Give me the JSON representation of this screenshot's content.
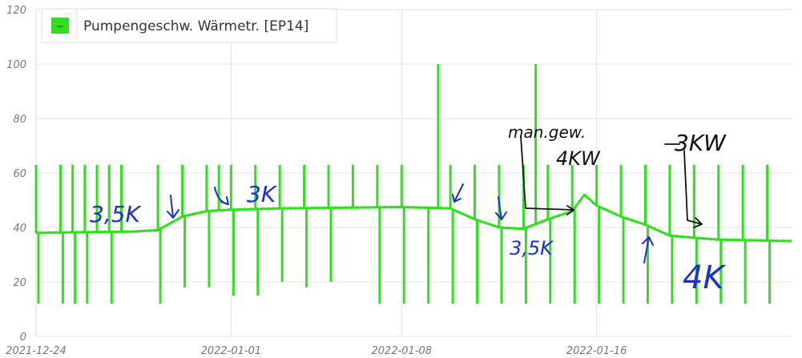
{
  "chart_data": {
    "type": "line",
    "title": "",
    "xlabel": "",
    "ylabel": "",
    "x_ticks": [
      "2021-12-24",
      "2022-01-01",
      "2022-01-08",
      "2022-01-16"
    ],
    "y_ticks": [
      0,
      20,
      40,
      60,
      80,
      100,
      120
    ],
    "xlim": [
      "2021-12-24",
      "2022-01-24"
    ],
    "ylim": [
      0,
      120
    ],
    "grid": true,
    "legend_position": "top-left",
    "series": [
      {
        "name": "Pumpengeschw. Wärmetr. [EP14]",
        "color": "#33dd22",
        "baseline": [
          [
            "2021-12-24",
            38
          ],
          [
            "2021-12-28",
            38.5
          ],
          [
            "2021-12-29",
            39
          ],
          [
            "2021-12-30",
            44
          ],
          [
            "2021-12-31",
            46
          ],
          [
            "2022-01-01",
            46.5
          ],
          [
            "2022-01-03",
            47
          ],
          [
            "2022-01-08",
            47.5
          ],
          [
            "2022-01-10",
            47
          ],
          [
            "2022-01-11",
            43
          ],
          [
            "2022-01-12",
            40
          ],
          [
            "2022-01-13",
            39.5
          ],
          [
            "2022-01-14",
            43
          ],
          [
            "2022-01-15",
            46
          ],
          [
            "2022-01-15T12",
            52
          ],
          [
            "2022-01-16",
            48
          ],
          [
            "2022-01-17",
            44
          ],
          [
            "2022-01-18",
            41
          ],
          [
            "2022-01-19",
            37
          ],
          [
            "2022-01-21",
            35.5
          ],
          [
            "2022-01-24",
            35
          ]
        ],
        "spikes_high": [
          [
            "2021-12-24",
            63
          ],
          [
            "2021-12-25",
            63
          ],
          [
            "2021-12-25T12",
            63
          ],
          [
            "2021-12-26",
            63
          ],
          [
            "2021-12-26T12",
            63
          ],
          [
            "2021-12-27",
            63
          ],
          [
            "2021-12-27T12",
            63
          ],
          [
            "2021-12-29",
            63
          ],
          [
            "2021-12-30",
            63
          ],
          [
            "2021-12-31",
            63
          ],
          [
            "2021-12-31T12",
            63
          ],
          [
            "2022-01-01",
            63
          ],
          [
            "2022-01-02",
            63
          ],
          [
            "2022-01-03",
            63
          ],
          [
            "2022-01-04",
            63
          ],
          [
            "2022-01-05",
            63
          ],
          [
            "2022-01-06",
            63
          ],
          [
            "2022-01-07",
            63
          ],
          [
            "2022-01-08",
            63
          ],
          [
            "2022-01-09T12",
            100
          ],
          [
            "2022-01-10",
            63
          ],
          [
            "2022-01-11",
            63
          ],
          [
            "2022-01-12",
            63
          ],
          [
            "2022-01-13",
            63
          ],
          [
            "2022-01-13T12",
            100
          ],
          [
            "2022-01-14",
            63
          ],
          [
            "2022-01-15",
            63
          ],
          [
            "2022-01-16",
            63
          ],
          [
            "2022-01-17",
            63
          ],
          [
            "2022-01-18",
            63
          ],
          [
            "2022-01-19",
            63
          ],
          [
            "2022-01-20",
            63
          ],
          [
            "2022-01-21",
            63
          ],
          [
            "2022-01-22",
            63
          ],
          [
            "2022-01-23",
            63
          ]
        ],
        "dips_low": [
          [
            "2021-12-24",
            12
          ],
          [
            "2021-12-25",
            12
          ],
          [
            "2021-12-25T12",
            12
          ],
          [
            "2021-12-26",
            12
          ],
          [
            "2021-12-27",
            12
          ],
          [
            "2021-12-29",
            12
          ],
          [
            "2021-12-30",
            18
          ],
          [
            "2021-12-31",
            18
          ],
          [
            "2022-01-01",
            15
          ],
          [
            "2022-01-02",
            15
          ],
          [
            "2022-01-03",
            20
          ],
          [
            "2022-01-04",
            18
          ],
          [
            "2022-01-05",
            20
          ],
          [
            "2022-01-07",
            12
          ],
          [
            "2022-01-08",
            12
          ],
          [
            "2022-01-09",
            12
          ],
          [
            "2022-01-10",
            12
          ],
          [
            "2022-01-11",
            12
          ],
          [
            "2022-01-12",
            12
          ],
          [
            "2022-01-13",
            12
          ],
          [
            "2022-01-14",
            12
          ],
          [
            "2022-01-15",
            12
          ],
          [
            "2022-01-16",
            12
          ],
          [
            "2022-01-17",
            12
          ],
          [
            "2022-01-18",
            12
          ],
          [
            "2022-01-19",
            12
          ],
          [
            "2022-01-20",
            12
          ],
          [
            "2022-01-21",
            12
          ],
          [
            "2022-01-22",
            12
          ],
          [
            "2022-01-23",
            12
          ]
        ]
      }
    ]
  },
  "annotations": {
    "a1": "3,5K",
    "a2": "3K",
    "a3": "man.gew.",
    "a4": "4KW",
    "a5": "3KW",
    "a6": "3,5K",
    "a7": "4K"
  },
  "legend_icon_glyph": "−"
}
